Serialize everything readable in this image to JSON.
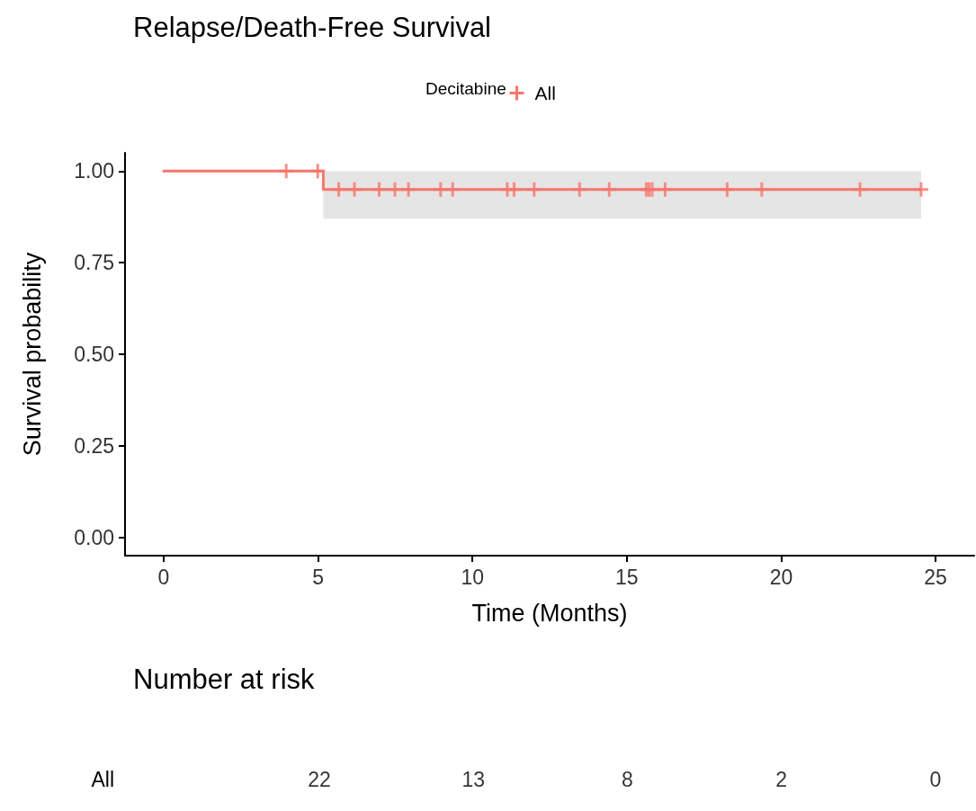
{
  "chart_data": [
    {
      "type": "step",
      "title": "Relapse/Death-Free Survival",
      "xlabel": "Time (Months)",
      "ylabel": "Survival probability",
      "legend_title": "Decitabine",
      "legend": "top",
      "xlim": [
        -1.25,
        26.25
      ],
      "xticks": [
        0,
        5,
        10,
        15,
        20,
        25
      ],
      "ylim": [
        -0.05,
        1.05
      ],
      "yticks": [
        {
          "value": 0,
          "label": "0.00"
        },
        {
          "value": 0.25,
          "label": "0.25"
        },
        {
          "value": 0.5,
          "label": "0.50"
        },
        {
          "value": 0.75,
          "label": "0.75"
        },
        {
          "value": 1,
          "label": "1.00"
        }
      ],
      "grid": false,
      "series": [
        {
          "name": "All",
          "type": "step",
          "color": "#f8766d",
          "marker": "none",
          "x": [
            0,
            5.17,
            24.53
          ],
          "values": [
            1,
            0.95,
            0.95
          ],
          "lower": [
            null,
            0.87,
            0.87
          ],
          "upper": [
            null,
            1,
            1
          ]
        },
        {
          "type": "scatter",
          "color": "#f8766d",
          "marker": "cross",
          "x": [
            3.97,
            4.99,
            5.67,
            6.18,
            6.98,
            7.49,
            7.93,
            8.97,
            9.36,
            11.13,
            11.35,
            12.0,
            13.47,
            14.43,
            15.63,
            15.72,
            15.82,
            16.24,
            18.25,
            19.37,
            22.55,
            24.53
          ],
          "values": [
            1,
            1,
            0.95,
            0.95,
            0.95,
            0.95,
            0.95,
            0.95,
            0.95,
            0.95,
            0.95,
            0.95,
            0.95,
            0.95,
            0.95,
            0.95,
            0.95,
            0.95,
            0.95,
            0.95,
            0.95,
            0.95
          ]
        }
      ]
    },
    {
      "type": "other",
      "title": "Number at risk",
      "categories": [
        null,
        null,
        null,
        null,
        null
      ],
      "data_labels": true,
      "series": [
        {
          "name": "All",
          "values": [
            22,
            13,
            8,
            2,
            0
          ]
        }
      ]
    }
  ]
}
